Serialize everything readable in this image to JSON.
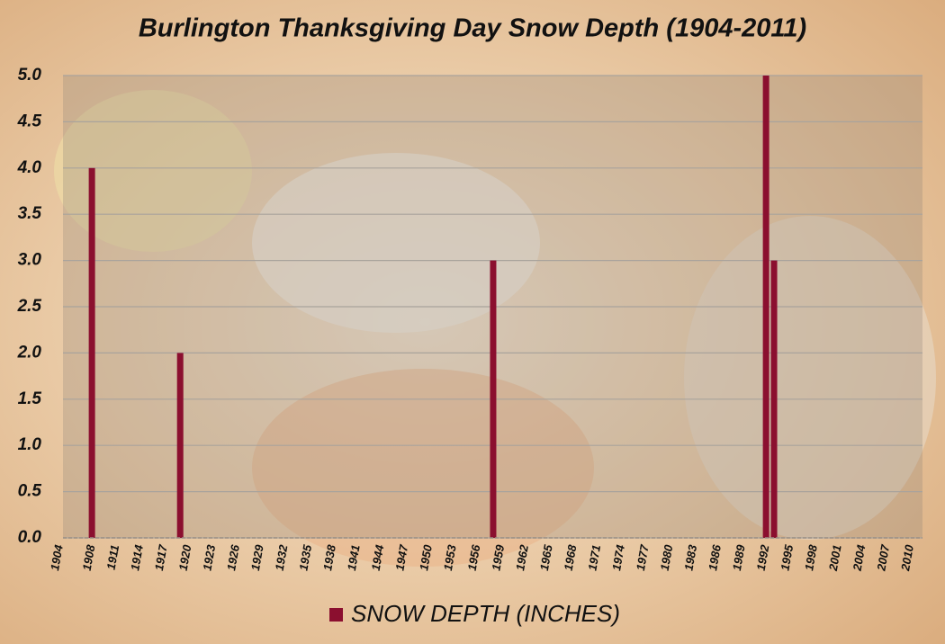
{
  "chart_data": {
    "type": "bar",
    "title": "Burlington Thanksgiving  Day Snow Depth (1904-2011)",
    "categories": [
      "1904",
      null,
      null,
      null,
      "1908",
      null,
      null,
      "1911",
      null,
      null,
      "1914",
      null,
      null,
      "1917",
      null,
      null,
      "1920",
      null,
      null,
      "1923",
      null,
      null,
      "1926",
      null,
      null,
      "1929",
      null,
      null,
      "1932",
      null,
      null,
      "1935",
      null,
      null,
      "1938",
      null,
      null,
      "1941",
      null,
      null,
      "1944",
      null,
      null,
      "1947",
      null,
      null,
      "1950",
      null,
      null,
      "1953",
      null,
      null,
      "1956",
      null,
      null,
      "1959",
      null,
      null,
      "1962",
      null,
      null,
      "1965",
      null,
      null,
      "1968",
      null,
      null,
      "1971",
      null,
      null,
      "1974",
      null,
      null,
      "1977",
      null,
      null,
      "1980",
      null,
      null,
      "1983",
      null,
      null,
      "1986",
      null,
      null,
      "1989",
      null,
      null,
      "1992",
      null,
      null,
      "1995",
      null,
      null,
      "1998",
      null,
      null,
      "2001",
      null,
      null,
      "2004",
      null,
      null,
      "2007",
      null,
      null,
      "2010",
      null
    ],
    "series": [
      {
        "name": "SNOW DEPTH (INCHES)",
        "color": "#8b0f2f",
        "values": [
          0,
          0,
          0,
          0,
          4,
          0,
          0,
          0,
          0,
          0,
          0,
          0,
          0,
          0,
          0,
          2,
          0,
          0,
          0,
          0,
          0,
          0,
          0,
          0,
          0,
          0,
          0,
          0,
          0,
          0,
          0,
          0,
          0,
          0,
          0,
          0,
          0,
          0,
          0,
          0,
          0,
          0,
          0,
          0,
          0,
          0,
          0,
          0,
          0,
          0,
          0,
          0,
          0,
          0,
          3,
          0,
          0,
          0,
          0,
          0,
          0,
          0,
          0,
          0,
          0,
          0,
          0,
          0,
          0,
          0,
          0,
          0,
          0,
          0,
          0,
          0,
          0,
          0,
          0,
          0,
          0,
          0,
          0,
          0,
          0,
          0,
          0,
          0,
          5,
          3,
          0,
          0,
          0,
          0,
          0,
          0,
          0,
          0,
          0,
          0,
          0,
          0,
          0,
          0,
          0,
          0,
          0,
          0
        ]
      }
    ],
    "ylim": [
      0,
      5
    ],
    "yticks": [
      {
        "value": 0,
        "label": "0.0"
      },
      0.5,
      {
        "value": 1,
        "label": "1.0"
      },
      1.5,
      {
        "value": 2,
        "label": "2.0"
      },
      2.5,
      {
        "value": 3,
        "label": "3.0"
      },
      3.5,
      {
        "value": 4,
        "label": "4.0"
      },
      4.5,
      {
        "value": 5,
        "label": "5.0"
      }
    ],
    "grid": true,
    "legend": "bottom"
  }
}
